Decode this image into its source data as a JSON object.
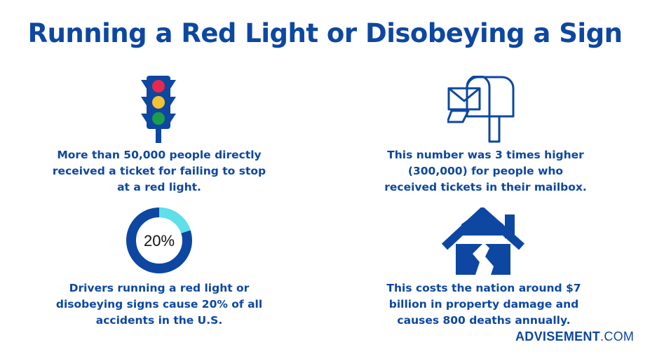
{
  "title": "Running a Red Light or Disobeying a Sign",
  "colors": {
    "brand_blue": "#0d47a1",
    "light_red": "#e8284a",
    "light_yellow": "#f5c230",
    "light_green": "#1a9e4c",
    "ring_accent": "#5ee0ea"
  },
  "stats": [
    {
      "icon": "traffic-light-icon",
      "text": "More than 50,000 people directly received a ticket for failing to stop at a red light."
    },
    {
      "icon": "mailbox-icon",
      "text": "This number was 3 times higher (300,000) for people who received tickets in their mailbox."
    },
    {
      "icon": "donut-percentage-icon",
      "percent": 20,
      "percent_label": "20%",
      "text": "Drivers running a red light or disobeying signs cause 20% of all accidents in the U.S."
    },
    {
      "icon": "damaged-house-icon",
      "text": "This costs the nation around $7 billion in property damage and causes 800 deaths annually."
    }
  ],
  "logo": {
    "brand": "ADVISEMENT",
    "tld": ".COM"
  }
}
